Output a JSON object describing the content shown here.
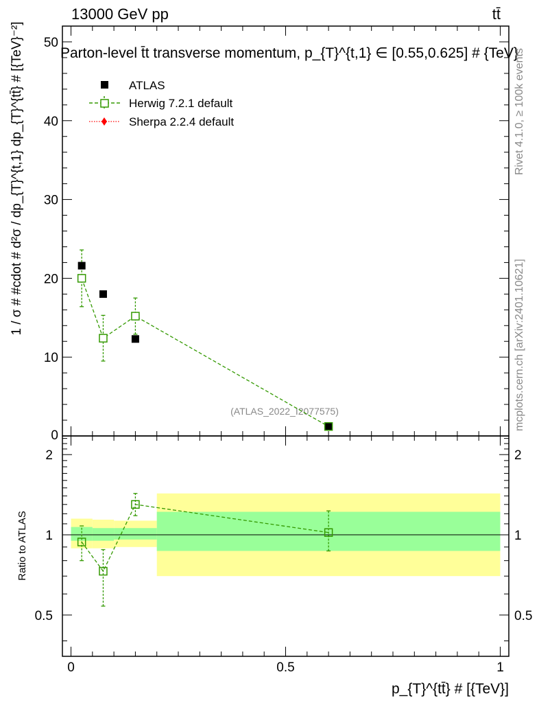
{
  "header": {
    "energy": "13000 GeV pp",
    "process": "tt̄"
  },
  "side_labels": {
    "rivet": "Rivet 4.1.0, ≥ 100k events",
    "mcplots": "mcplots.cern.ch [arXiv:2401.10621]"
  },
  "colors": {
    "atlas": "#000000",
    "herwig": "#339900",
    "sherpa": "#ff0000",
    "band_inner": "#99ff99",
    "band_outer": "#ffff99"
  },
  "chart_data": [
    {
      "type": "scatter",
      "title": "Parton-level t̄t transverse momentum, p_{T}^{t,1} ∈ [0.55,0.625] # {TeV}",
      "xlabel": "p_{T}^{tt̄} # [{TeV}]",
      "ylabel": "1 / σ # #cdot # d²σ / dp_{T}^{t,1} dp_{T}^{tt̄} # [{TeV}⁻²]",
      "xlim": [
        -0.02,
        1.02
      ],
      "ylim": [
        0,
        52
      ],
      "yticks": [
        10,
        20,
        30,
        40,
        50
      ],
      "xticks": [
        0,
        0.5,
        1
      ],
      "annotation": "(ATLAS_2022_I2077575)",
      "legend": [
        "ATLAS",
        "Herwig 7.2.1 default",
        "Sherpa 2.2.4 default"
      ],
      "series": [
        {
          "name": "ATLAS",
          "x": [
            0.025,
            0.075,
            0.15,
            0.6
          ],
          "y": [
            21.6,
            18.0,
            12.3,
            1.2
          ]
        },
        {
          "name": "Herwig 7.2.1 default",
          "x": [
            0.025,
            0.075,
            0.15,
            0.6
          ],
          "y": [
            20.0,
            12.4,
            15.2,
            1.2
          ],
          "err_low": [
            3.6,
            2.9,
            2.3,
            0.15
          ],
          "err_high": [
            3.6,
            2.9,
            2.3,
            0.15
          ]
        },
        {
          "name": "Sherpa 2.2.4 default",
          "x": [],
          "y": []
        }
      ]
    },
    {
      "type": "scatter",
      "ylabel": "Ratio to ATLAS",
      "xlabel": "p_{T}^{tt̄} # [{TeV}]",
      "xlim": [
        -0.02,
        1.02
      ],
      "ylim": [
        0.35,
        2.35
      ],
      "yscale": "log",
      "yticks": [
        0.5,
        1,
        2
      ],
      "ytick_labels": [
        "0.5",
        "1",
        "2"
      ],
      "xticks": [
        0,
        0.5,
        1
      ],
      "xtick_labels": [
        "0",
        "0.5",
        "1"
      ],
      "bands": [
        {
          "x0": 0.0,
          "x1": 0.05,
          "inner": [
            0.95,
            1.07
          ],
          "outer": [
            0.89,
            1.15
          ]
        },
        {
          "x0": 0.05,
          "x1": 0.1,
          "inner": [
            0.95,
            1.06
          ],
          "outer": [
            0.89,
            1.14
          ]
        },
        {
          "x0": 0.1,
          "x1": 0.2,
          "inner": [
            0.96,
            1.06
          ],
          "outer": [
            0.9,
            1.13
          ]
        },
        {
          "x0": 0.2,
          "x1": 1.0,
          "inner": [
            0.87,
            1.22
          ],
          "outer": [
            0.7,
            1.43
          ]
        }
      ],
      "series": [
        {
          "name": "Herwig 7.2.1 default",
          "x": [
            0.025,
            0.075,
            0.15,
            0.6
          ],
          "y": [
            0.94,
            0.73,
            1.3,
            1.02
          ],
          "err_low": [
            0.14,
            0.19,
            0.12,
            0.15
          ],
          "err_high": [
            0.14,
            0.15,
            0.13,
            0.21
          ]
        }
      ]
    }
  ]
}
